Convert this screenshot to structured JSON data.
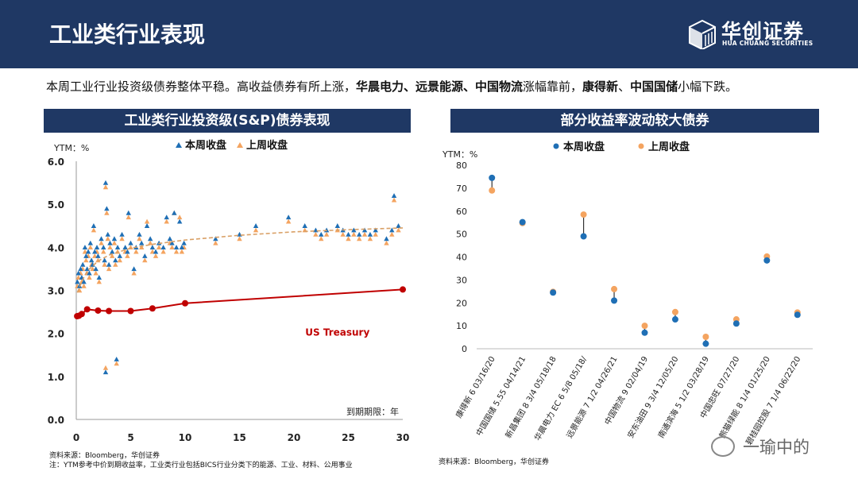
{
  "header": {
    "title": "工业类行业表现"
  },
  "logo": {
    "cn": "华创证券",
    "en": "HUA CHUANG SECURITIES"
  },
  "summary": {
    "seg1": "本周工业行业投资级债券整体平稳。高收益债券有所上涨，",
    "bold1": "华晨电力、远景能源、中国物流",
    "seg2": "涨幅靠前，",
    "bold2": "康得新",
    "seg3": "、",
    "bold3": "中国国储",
    "seg4": "小幅下跌。"
  },
  "left_panel": {
    "title": "工业类行业投资级(S&P)债券表现",
    "source": "资料来源：Bloomberg，华创证券",
    "note": "注：YTM参考中价到期收益率，工业类行业包括BICS行业分类下的能源、工业、材料、公用事业"
  },
  "right_panel": {
    "title": "部分收益率波动较大债券",
    "source": "资料来源：Bloomberg，华创证券"
  },
  "watermark": {
    "text": "一瑜中的"
  },
  "colors": {
    "navy": "#1f3864",
    "this_week": "#1f6fb5",
    "last_week": "#f4a460",
    "treasury": "#c00000",
    "trend": "#d9a066"
  },
  "chart_data": [
    {
      "type": "scatter",
      "title": "工业类行业投资级(S&P)债券表现",
      "ylabel": "YTM：%",
      "xlabel": "到期期限：年",
      "xlim": [
        0,
        30
      ],
      "ylim": [
        0.0,
        6.0
      ],
      "xticks": [
        "0",
        "5",
        "10",
        "15",
        "20",
        "25",
        "30"
      ],
      "yticks": [
        "0.0",
        "1.0",
        "2.0",
        "3.0",
        "4.0",
        "5.0",
        "6.0"
      ],
      "legend": [
        "本周收盘",
        "上周收盘"
      ],
      "series": [
        {
          "name": "本周收盘",
          "points": [
            [
              0.1,
              3.2
            ],
            [
              0.2,
              3.4
            ],
            [
              0.3,
              3.1
            ],
            [
              0.4,
              3.5
            ],
            [
              0.5,
              3.3
            ],
            [
              0.6,
              3.6
            ],
            [
              0.7,
              3.2
            ],
            [
              0.8,
              4.0
            ],
            [
              0.9,
              3.8
            ],
            [
              1.0,
              3.5
            ],
            [
              1.1,
              3.9
            ],
            [
              1.2,
              3.4
            ],
            [
              1.3,
              4.1
            ],
            [
              1.4,
              3.7
            ],
            [
              1.5,
              3.6
            ],
            [
              1.6,
              4.5
            ],
            [
              1.7,
              3.9
            ],
            [
              1.8,
              3.5
            ],
            [
              1.9,
              4.0
            ],
            [
              2.0,
              3.8
            ],
            [
              2.1,
              3.3
            ],
            [
              2.3,
              4.2
            ],
            [
              2.5,
              4.0
            ],
            [
              2.6,
              3.7
            ],
            [
              2.7,
              5.5
            ],
            [
              2.8,
              4.9
            ],
            [
              2.9,
              4.3
            ],
            [
              3.0,
              3.6
            ],
            [
              3.1,
              4.1
            ],
            [
              3.3,
              3.9
            ],
            [
              3.5,
              4.2
            ],
            [
              3.6,
              3.7
            ],
            [
              3.8,
              4.0
            ],
            [
              4.0,
              3.8
            ],
            [
              4.2,
              4.3
            ],
            [
              4.5,
              4.0
            ],
            [
              4.7,
              3.9
            ],
            [
              4.8,
              4.8
            ],
            [
              5.0,
              4.1
            ],
            [
              5.3,
              3.5
            ],
            [
              5.5,
              4.0
            ],
            [
              5.8,
              4.3
            ],
            [
              6.0,
              4.1
            ],
            [
              6.3,
              3.8
            ],
            [
              6.5,
              4.5
            ],
            [
              6.8,
              4.2
            ],
            [
              7.0,
              4.0
            ],
            [
              7.3,
              3.9
            ],
            [
              7.6,
              4.1
            ],
            [
              8.0,
              4.0
            ],
            [
              8.3,
              4.7
            ],
            [
              8.6,
              4.2
            ],
            [
              8.8,
              4.1
            ],
            [
              9.0,
              4.8
            ],
            [
              9.2,
              4.0
            ],
            [
              9.5,
              4.6
            ],
            [
              9.7,
              4.0
            ],
            [
              9.9,
              4.1
            ],
            [
              12.8,
              4.2
            ],
            [
              15.0,
              4.3
            ],
            [
              16.5,
              4.5
            ],
            [
              19.5,
              4.7
            ],
            [
              21.0,
              4.5
            ],
            [
              22.0,
              4.4
            ],
            [
              22.5,
              4.3
            ],
            [
              23.0,
              4.4
            ],
            [
              24.0,
              4.5
            ],
            [
              24.5,
              4.4
            ],
            [
              25.0,
              4.3
            ],
            [
              25.5,
              4.4
            ],
            [
              26.0,
              4.3
            ],
            [
              26.5,
              4.4
            ],
            [
              27.0,
              4.3
            ],
            [
              27.5,
              4.4
            ],
            [
              28.5,
              4.2
            ],
            [
              29.0,
              4.4
            ],
            [
              29.2,
              5.2
            ],
            [
              29.6,
              4.5
            ],
            [
              2.7,
              1.1
            ],
            [
              3.7,
              1.4
            ]
          ]
        },
        {
          "name": "上周收盘",
          "points": [
            [
              0.1,
              3.1
            ],
            [
              0.2,
              3.3
            ],
            [
              0.3,
              3.0
            ],
            [
              0.4,
              3.4
            ],
            [
              0.5,
              3.2
            ],
            [
              0.6,
              3.5
            ],
            [
              0.7,
              3.1
            ],
            [
              0.8,
              3.9
            ],
            [
              0.9,
              3.7
            ],
            [
              1.0,
              3.4
            ],
            [
              1.1,
              3.8
            ],
            [
              1.2,
              3.3
            ],
            [
              1.3,
              4.0
            ],
            [
              1.4,
              3.6
            ],
            [
              1.5,
              3.5
            ],
            [
              1.6,
              4.4
            ],
            [
              1.7,
              3.8
            ],
            [
              1.8,
              3.4
            ],
            [
              1.9,
              3.9
            ],
            [
              2.0,
              3.7
            ],
            [
              2.1,
              3.2
            ],
            [
              2.3,
              4.1
            ],
            [
              2.5,
              3.9
            ],
            [
              2.6,
              3.6
            ],
            [
              2.7,
              5.4
            ],
            [
              2.8,
              4.8
            ],
            [
              2.9,
              4.2
            ],
            [
              3.0,
              3.5
            ],
            [
              3.1,
              4.0
            ],
            [
              3.3,
              3.8
            ],
            [
              3.5,
              4.1
            ],
            [
              3.6,
              3.6
            ],
            [
              3.8,
              3.9
            ],
            [
              4.0,
              3.7
            ],
            [
              4.2,
              4.2
            ],
            [
              4.5,
              3.9
            ],
            [
              4.7,
              3.8
            ],
            [
              4.8,
              4.7
            ],
            [
              5.0,
              4.0
            ],
            [
              5.3,
              3.4
            ],
            [
              5.5,
              3.9
            ],
            [
              5.8,
              4.2
            ],
            [
              6.0,
              4.0
            ],
            [
              6.3,
              3.7
            ],
            [
              6.5,
              4.6
            ],
            [
              6.8,
              4.1
            ],
            [
              7.0,
              3.9
            ],
            [
              7.3,
              3.8
            ],
            [
              7.6,
              4.0
            ],
            [
              8.0,
              3.9
            ],
            [
              8.3,
              4.6
            ],
            [
              8.6,
              4.1
            ],
            [
              8.8,
              4.0
            ],
            [
              9.0,
              4.8
            ],
            [
              9.2,
              3.9
            ],
            [
              9.5,
              4.7
            ],
            [
              9.7,
              3.9
            ],
            [
              9.9,
              4.0
            ],
            [
              12.8,
              4.1
            ],
            [
              15.0,
              4.2
            ],
            [
              16.5,
              4.4
            ],
            [
              19.5,
              4.6
            ],
            [
              21.0,
              4.4
            ],
            [
              22.0,
              4.3
            ],
            [
              22.5,
              4.2
            ],
            [
              23.0,
              4.3
            ],
            [
              24.0,
              4.4
            ],
            [
              24.5,
              4.3
            ],
            [
              25.0,
              4.2
            ],
            [
              25.5,
              4.3
            ],
            [
              26.0,
              4.2
            ],
            [
              26.5,
              4.3
            ],
            [
              27.0,
              4.2
            ],
            [
              27.5,
              4.3
            ],
            [
              28.5,
              4.1
            ],
            [
              29.0,
              4.3
            ],
            [
              29.2,
              5.1
            ],
            [
              29.6,
              4.4
            ],
            [
              2.7,
              1.2
            ],
            [
              3.7,
              1.3
            ]
          ]
        },
        {
          "name": "US Treasury",
          "type": "line",
          "points": [
            [
              0.08,
              2.4
            ],
            [
              0.25,
              2.41
            ],
            [
              0.5,
              2.45
            ],
            [
              1,
              2.56
            ],
            [
              2,
              2.53
            ],
            [
              3,
              2.52
            ],
            [
              5,
              2.52
            ],
            [
              7,
              2.58
            ],
            [
              10,
              2.7
            ],
            [
              30,
              3.02
            ]
          ]
        },
        {
          "name": "trend",
          "type": "line",
          "points": [
            [
              0.1,
              2.95
            ],
            [
              0.5,
              3.2
            ],
            [
              1,
              3.45
            ],
            [
              2,
              3.68
            ],
            [
              3,
              3.82
            ],
            [
              5,
              3.98
            ],
            [
              7,
              4.07
            ],
            [
              10,
              4.17
            ],
            [
              15,
              4.28
            ],
            [
              20,
              4.36
            ],
            [
              25,
              4.41
            ],
            [
              30,
              4.45
            ]
          ]
        }
      ],
      "annotations": [
        {
          "text": "US Treasury",
          "x": 24,
          "y": 1.95
        }
      ]
    },
    {
      "type": "scatter",
      "title": "部分收益率波动较大债券",
      "ylabel": "YTM：%",
      "ylim": [
        0,
        80
      ],
      "yticks": [
        "0",
        "10",
        "20",
        "30",
        "40",
        "50",
        "60",
        "70",
        "80"
      ],
      "legend": [
        "本周收盘",
        "上周收盘"
      ],
      "categories": [
        "康得新 6 03/16/20",
        "中国国储 5.55 04/14/21",
        "新昌集团 8 3/4 05/18/18",
        "华晨电力 EC 6 5/8 05/18/",
        "远景能源 7 1/2 04/26/21",
        "中国物流 9 02/04/19",
        "安东油田 9 3/4 12/05/20",
        "南通滨海 5 1/2 03/28/19",
        "中国忠旺 07/27/20",
        "熊猫绿能 8 1/4 01/25/20",
        "碧桂园控股 7 1/4 06/22/20"
      ],
      "series": [
        {
          "name": "本周收盘",
          "values": [
            74.5,
            55.2,
            24.5,
            49.0,
            21.0,
            7.0,
            12.8,
            2.2,
            11.0,
            38.5,
            14.8
          ]
        },
        {
          "name": "上周收盘",
          "values": [
            69.0,
            54.8,
            24.8,
            58.5,
            26.0,
            10.0,
            16.0,
            5.2,
            12.8,
            40.2,
            15.8
          ]
        }
      ]
    }
  ]
}
